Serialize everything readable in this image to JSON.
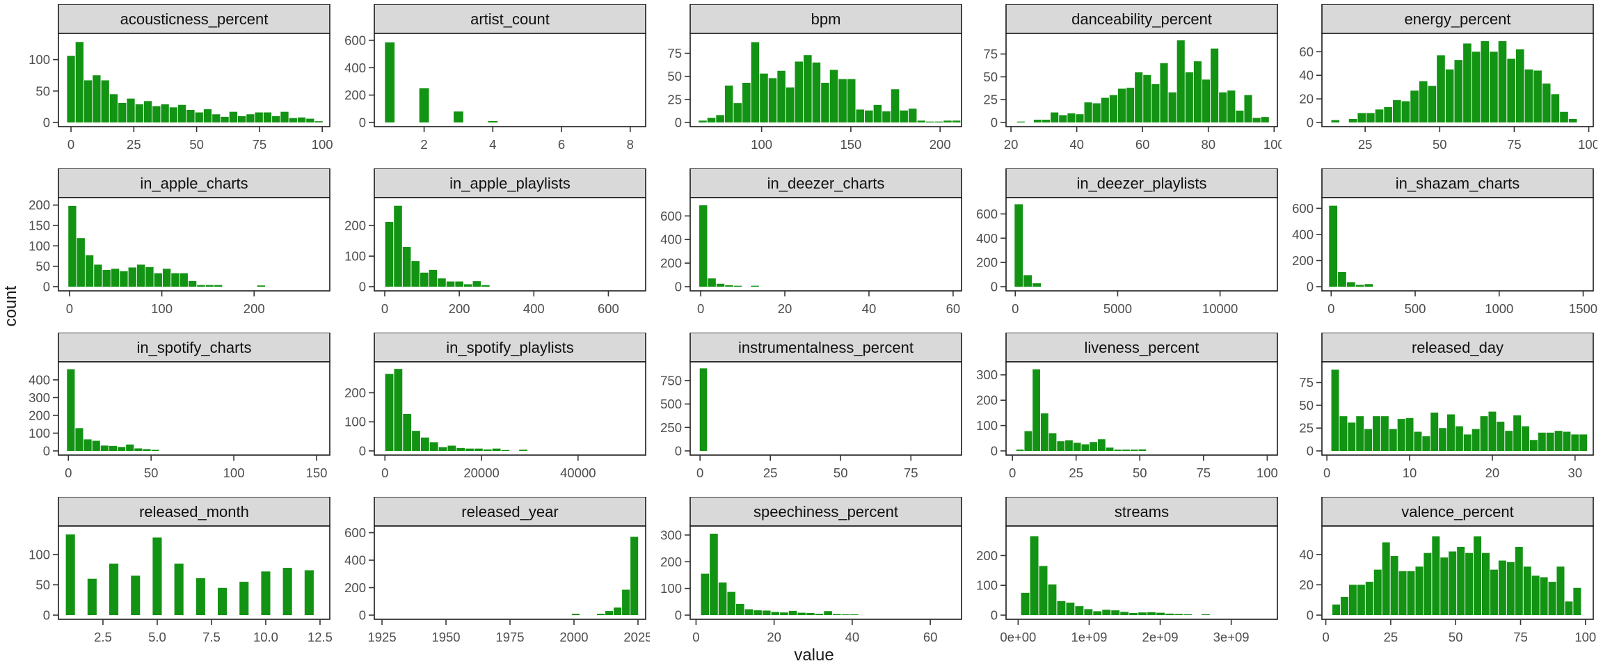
{
  "figure": {
    "ylab": "count",
    "xlab": "value",
    "bar_color": "#139313",
    "strip_bg": "#d9d9d9",
    "border_color": "#1a1a1a",
    "tick_color": "#333333",
    "tick_label_color": "#4d4d4d",
    "strip_text_color": "#111111"
  },
  "chart_data": {
    "type": "bar",
    "subtype": "faceted_histograms",
    "layout": "5 columns x 4 rows, free scales",
    "xlabel": "value",
    "ylabel": "count",
    "grid": false,
    "panels": [
      {
        "title": "acousticness_percent",
        "x_first": 0,
        "x_step": 3.4,
        "counts": [
          106,
          128,
          67,
          75,
          67,
          45,
          31,
          38,
          29,
          34,
          26,
          29,
          24,
          28,
          20,
          16,
          21,
          13,
          9,
          17,
          10,
          13,
          16,
          16,
          10,
          17,
          7,
          8,
          6,
          2
        ],
        "xlim": [
          -5,
          103
        ],
        "xticks": [
          0,
          25,
          50,
          75,
          100
        ],
        "yticks": [
          0,
          50,
          100
        ],
        "ymax": 135
      },
      {
        "title": "artist_count",
        "x_first": 1,
        "x_step": 1,
        "bar_w": 0.28,
        "counts": [
          585,
          250,
          80,
          10
        ],
        "xlim": [
          0.55,
          8.45
        ],
        "xticks": [
          2,
          4,
          6,
          8
        ],
        "yticks": [
          0,
          200,
          400,
          600
        ],
        "ymax": 620
      },
      {
        "title": "bpm",
        "x_first": 67,
        "x_step": 4.9,
        "counts": [
          2,
          5,
          8,
          40,
          21,
          43,
          87,
          53,
          48,
          56,
          38,
          66,
          73,
          65,
          43,
          57,
          47,
          47,
          14,
          13,
          19,
          12,
          36,
          13,
          15,
          2,
          1,
          1,
          2,
          2
        ],
        "xlim": [
          60,
          212
        ],
        "xticks": [
          100,
          150,
          200
        ],
        "yticks": [
          0,
          25,
          50,
          75
        ],
        "ymax": 92
      },
      {
        "title": "danceability_percent",
        "x_first": 23,
        "x_step": 2.56,
        "counts": [
          1,
          0,
          3,
          3,
          11,
          8,
          10,
          9,
          22,
          21,
          27,
          30,
          37,
          38,
          55,
          52,
          42,
          65,
          33,
          90,
          55,
          67,
          47,
          81,
          33,
          35,
          13,
          30,
          5,
          6
        ],
        "xlim": [
          18.5,
          101
        ],
        "xticks": [
          20,
          40,
          60,
          80,
          100
        ],
        "yticks": [
          0,
          25,
          50,
          75
        ],
        "ymax": 93
      },
      {
        "title": "energy_percent",
        "x_first": 15,
        "x_step": 2.95,
        "counts": [
          2,
          0,
          3,
          8,
          8,
          11,
          13,
          19,
          18,
          27,
          35,
          31,
          57,
          45,
          53,
          67,
          60,
          69,
          60,
          69,
          54,
          62,
          45,
          44,
          33,
          24,
          9,
          3
        ],
        "xlim": [
          10.5,
          101.5
        ],
        "xticks": [
          25,
          50,
          75,
          100
        ],
        "yticks": [
          0,
          20,
          40,
          60
        ],
        "ymax": 72
      },
      {
        "title": "in_apple_charts",
        "x_first": 3,
        "x_step": 9.3,
        "counts": [
          198,
          119,
          77,
          54,
          41,
          44,
          38,
          47,
          54,
          48,
          33,
          44,
          33,
          33,
          14,
          4,
          4,
          4,
          0,
          0,
          0,
          0,
          3
        ],
        "xlim": [
          -12,
          282
        ],
        "xticks": [
          0,
          100,
          200
        ],
        "yticks": [
          0,
          50,
          100,
          150,
          200
        ],
        "ymax": 208
      },
      {
        "title": "in_apple_playlists",
        "x_first": 12,
        "x_step": 23.5,
        "counts": [
          212,
          265,
          130,
          84,
          46,
          55,
          27,
          17,
          17,
          8,
          18,
          5
        ],
        "xlim": [
          -28,
          700
        ],
        "xticks": [
          0,
          200,
          400,
          600
        ],
        "yticks": [
          0,
          100,
          200
        ],
        "ymax": 278
      },
      {
        "title": "in_deezer_charts",
        "x_first": 0.6,
        "x_step": 2.05,
        "counts": [
          690,
          70,
          25,
          12,
          8,
          0,
          8
        ],
        "xlim": [
          -2.5,
          62
        ],
        "xticks": [
          0,
          20,
          40,
          60
        ],
        "yticks": [
          0,
          200,
          400,
          600
        ],
        "ymax": 720
      },
      {
        "title": "in_deezer_playlists",
        "x_first": 170,
        "x_step": 440,
        "counts": [
          680,
          95,
          28
        ],
        "xlim": [
          -450,
          12800
        ],
        "xticks": [
          0,
          5000,
          10000
        ],
        "yticks": [
          0,
          200,
          400,
          600
        ],
        "ymax": 700
      },
      {
        "title": "in_shazam_charts",
        "x_first": 12,
        "x_step": 53,
        "counts": [
          620,
          112,
          35,
          14,
          20
        ],
        "xlim": [
          -55,
          1560
        ],
        "xticks": [
          0,
          500,
          1000,
          1500
        ],
        "yticks": [
          0,
          200,
          400,
          600
        ],
        "ymax": 650
      },
      {
        "title": "in_spotify_charts",
        "x_first": 1.5,
        "x_step": 5.1,
        "counts": [
          460,
          128,
          65,
          57,
          30,
          28,
          22,
          36,
          14,
          10,
          6
        ],
        "xlim": [
          -6,
          158
        ],
        "xticks": [
          0,
          50,
          100,
          150
        ],
        "yticks": [
          0,
          100,
          200,
          300,
          400
        ],
        "ymax": 478
      },
      {
        "title": "in_spotify_playlists",
        "x_first": 900,
        "x_step": 1850,
        "counts": [
          265,
          282,
          127,
          69,
          46,
          30,
          13,
          18,
          10,
          8,
          8,
          5,
          8,
          3,
          0,
          4
        ],
        "xlim": [
          -2200,
          54000
        ],
        "xticks": [
          0,
          20000,
          40000
        ],
        "yticks": [
          0,
          100,
          200
        ],
        "ymax": 292
      },
      {
        "title": "instrumentalness_percent",
        "x_first": 1.2,
        "x_step": 3.1,
        "bar_w": 2.6,
        "counts": [
          880
        ],
        "xlim": [
          -3.5,
          93
        ],
        "xticks": [
          0,
          25,
          50,
          75
        ],
        "yticks": [
          0,
          250,
          500,
          750
        ],
        "ymax": 905
      },
      {
        "title": "liveness_percent",
        "x_first": 3,
        "x_step": 3.2,
        "counts": [
          5,
          78,
          322,
          148,
          70,
          38,
          42,
          32,
          26,
          35,
          46,
          13,
          5,
          5,
          5,
          6
        ],
        "xlim": [
          -2.5,
          104
        ],
        "xticks": [
          0,
          25,
          50,
          75,
          100
        ],
        "yticks": [
          0,
          100,
          200,
          300
        ],
        "ymax": 335
      },
      {
        "title": "released_day",
        "x_first": 1,
        "x_step": 1,
        "bar_w": 0.92,
        "counts": [
          89,
          38,
          31,
          38,
          24,
          38,
          38,
          24,
          35,
          36,
          21,
          16,
          42,
          25,
          40,
          27,
          18,
          24,
          38,
          43,
          32,
          22,
          39,
          27,
          12,
          20,
          20,
          22,
          21,
          18,
          18
        ],
        "xlim": [
          -0.6,
          32.2
        ],
        "xticks": [
          0,
          10,
          20,
          30
        ],
        "yticks": [
          0,
          25,
          50,
          75
        ],
        "ymax": 93
      },
      {
        "title": "released_month",
        "x_first": 1,
        "x_step": 1,
        "bar_w": 0.42,
        "counts": [
          133,
          60,
          85,
          65,
          128,
          85,
          61,
          45,
          55,
          72,
          78,
          74
        ],
        "xlim": [
          0.45,
          12.95
        ],
        "xticks": [
          2.5,
          5,
          7.5,
          10,
          12.5
        ],
        "xtick_labels": [
          "2.5",
          "5.0",
          "7.5",
          "10.0",
          "12.5"
        ],
        "yticks": [
          0,
          50,
          100
        ],
        "ymax": 140
      },
      {
        "title": "released_year",
        "x_first": 1932,
        "x_step": 3.27,
        "counts": [
          0,
          0,
          0,
          0,
          0,
          0,
          0,
          0,
          0,
          0,
          0,
          0,
          0,
          0,
          0,
          0,
          0,
          0,
          0,
          0,
          0,
          10,
          0,
          0,
          10,
          30,
          55,
          185,
          570
        ],
        "xlim": [
          1922,
          2028
        ],
        "xticks": [
          1925,
          1950,
          1975,
          2000,
          2025
        ],
        "yticks": [
          0,
          200,
          400,
          600
        ],
        "ymax": 618
      },
      {
        "title": "speechiness_percent",
        "x_first": 2.3,
        "x_step": 2.25,
        "counts": [
          155,
          305,
          122,
          87,
          42,
          22,
          18,
          17,
          12,
          10,
          16,
          9,
          8,
          5,
          15,
          4,
          3,
          3
        ],
        "xlim": [
          -1.5,
          68
        ],
        "xticks": [
          0,
          20,
          40,
          60
        ],
        "yticks": [
          0,
          100,
          200,
          300
        ],
        "ymax": 318
      },
      {
        "title": "streams",
        "x_first": 0.1,
        "x_step": 0.127,
        "counts": [
          75,
          265,
          165,
          103,
          47,
          42,
          30,
          20,
          13,
          18,
          16,
          11,
          7,
          9,
          10,
          8,
          5,
          4,
          3,
          0,
          3
        ],
        "xlim": [
          -0.17,
          3.65
        ],
        "xticks": [
          0,
          1,
          2,
          3
        ],
        "xtick_labels": [
          "0e+00",
          "1e+09",
          "2e+09",
          "3e+09"
        ],
        "yticks": [
          0,
          100,
          200
        ],
        "ymax": 285
      },
      {
        "title": "valence_percent",
        "x_first": 4,
        "x_step": 3.2,
        "counts": [
          7,
          12,
          20,
          20,
          22,
          30,
          48,
          39,
          29,
          29,
          32,
          41,
          52,
          38,
          42,
          45,
          41,
          52,
          41,
          30,
          36,
          35,
          45,
          32,
          26,
          25,
          22,
          32,
          9,
          18
        ],
        "xlim": [
          -1.5,
          103
        ],
        "xticks": [
          0,
          25,
          50,
          75,
          100
        ],
        "yticks": [
          0,
          20,
          40
        ],
        "ymax": 56
      }
    ]
  }
}
